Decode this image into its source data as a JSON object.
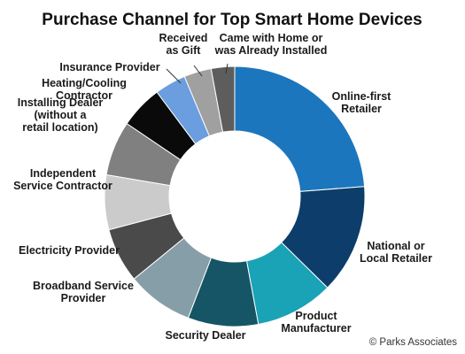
{
  "chart_data": {
    "type": "pie",
    "title": "Purchase Channel for Top Smart Home Devices",
    "credit": "© Parks Associates",
    "slices": [
      {
        "label": "Online-first Retailer",
        "lines": [
          "Online-first",
          "Retailer"
        ],
        "value": 24.5,
        "color": "#1b76be"
      },
      {
        "label": "National or Local Retailer",
        "lines": [
          "National or",
          "Local Retailer"
        ],
        "value": 14.0,
        "color": "#0c3d6b"
      },
      {
        "label": "Product Manufacturer",
        "lines": [
          "Product",
          "Manufacturer"
        ],
        "value": 10.0,
        "color": "#1aa2b6"
      },
      {
        "label": "Security Dealer",
        "lines": [
          "Security Dealer"
        ],
        "value": 9.0,
        "color": "#155565"
      },
      {
        "label": "Broadband Service Provider",
        "lines": [
          "Broadband Service",
          "Provider"
        ],
        "value": 8.5,
        "color": "#869ea8"
      },
      {
        "label": "Electricity Provider",
        "lines": [
          "Electricity Provider"
        ],
        "value": 7.0,
        "color": "#4a4a4a"
      },
      {
        "label": "Independent Service Contractor",
        "lines": [
          "Independent",
          "Service Contractor"
        ],
        "value": 7.0,
        "color": "#cbcbcb"
      },
      {
        "label": "Installing Dealer (without a retail location)",
        "lines": [
          "Installing Dealer",
          "(without a",
          "retail location)"
        ],
        "value": 7.0,
        "color": "#808080"
      },
      {
        "label": "Heating/Cooling Contractor",
        "lines": [
          "Heating/Cooling",
          "Contractor"
        ],
        "value": 5.5,
        "color": "#0a0a0a"
      },
      {
        "label": "Insurance Provider",
        "lines": [
          "Insurance Provider"
        ],
        "value": 4.0,
        "color": "#6a9ede"
      },
      {
        "label": "Received as Gift",
        "lines": [
          "Received",
          "as Gift"
        ],
        "value": 3.5,
        "color": "#a0a0a0"
      },
      {
        "label": "Came with Home or was Already Installed",
        "lines": [
          "Came with Home or",
          "was Already Installed"
        ],
        "value": 3.0,
        "color": "#5d5d5d"
      }
    ]
  }
}
